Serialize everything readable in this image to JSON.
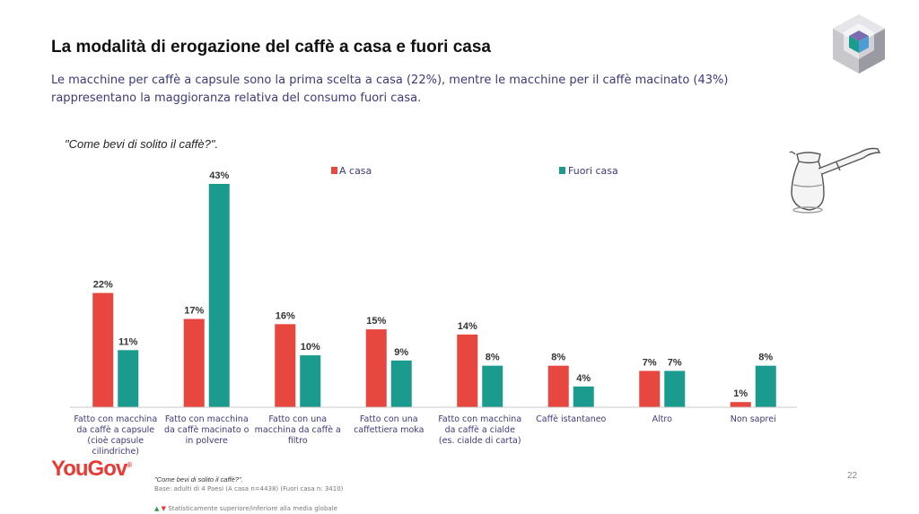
{
  "slide": {
    "title": "La modalità di erogazione del caffè a casa e fuori casa",
    "subtitle": "Le macchine per caffè a capsule sono la prima scelta a casa (22%), mentre le macchine per il caffè macinato (43%) rappresentano la maggioranza relativa del consumo fuori casa.",
    "question": "\"Come bevi di solito il caffè?\".",
    "page_number": "22"
  },
  "footer": {
    "logo": "YouGov",
    "logo_mark": "®",
    "question": "\"Come bevi di solito il caffè?\".",
    "base": "Base: adulti di 4 Paesi (A casa n=4438) (Fuori casa n: 3410)",
    "significance": "Statisticamente superiore/inferiore alla media globale",
    "up_symbol": "▲",
    "down_symbol": "▼"
  },
  "icons": {
    "top_right": "cube-logo-icon",
    "illustration": "turkish-coffee-pot-icon"
  },
  "colors": {
    "a_casa": "#e8473f",
    "fuori_casa": "#1a9b8d"
  },
  "chart_data": {
    "type": "bar",
    "title": "",
    "xlabel": "",
    "ylabel": "",
    "ylim": [
      0,
      45
    ],
    "grid": false,
    "legend_position": "top",
    "value_suffix": "%",
    "categories": [
      "Fatto con macchina da caffè a capsule (cioè capsule cilindriche)",
      "Fatto con macchina da caffè macinato o in polvere",
      "Fatto con una macchina da caffè a filtro",
      "Fatto con una caffettiera moka",
      "Fatto con macchina da caffè a cialde (es. cialde di carta)",
      "Caffè istantaneo",
      "Altro",
      "Non saprei"
    ],
    "category_lines": [
      [
        "Fatto con macchina",
        "da caffè a capsule",
        "(cioè capsule",
        "cilindriche)"
      ],
      [
        "Fatto con macchina",
        "da caffè macinato o",
        "in polvere"
      ],
      [
        "Fatto con una",
        "macchina da caffè a",
        "filtro"
      ],
      [
        "Fatto con una",
        "caffettiera moka"
      ],
      [
        "Fatto con macchina",
        "da caffè a cialde",
        "(es. cialde di carta)"
      ],
      [
        "Caffè istantaneo"
      ],
      [
        "Altro"
      ],
      [
        "Non saprei"
      ]
    ],
    "series": [
      {
        "name": "A casa",
        "color": "#e8473f",
        "values": [
          22,
          17,
          16,
          15,
          14,
          8,
          7,
          1
        ]
      },
      {
        "name": "Fuori casa",
        "color": "#1a9b8d",
        "values": [
          11,
          43,
          10,
          9,
          8,
          4,
          7,
          8
        ]
      }
    ]
  }
}
